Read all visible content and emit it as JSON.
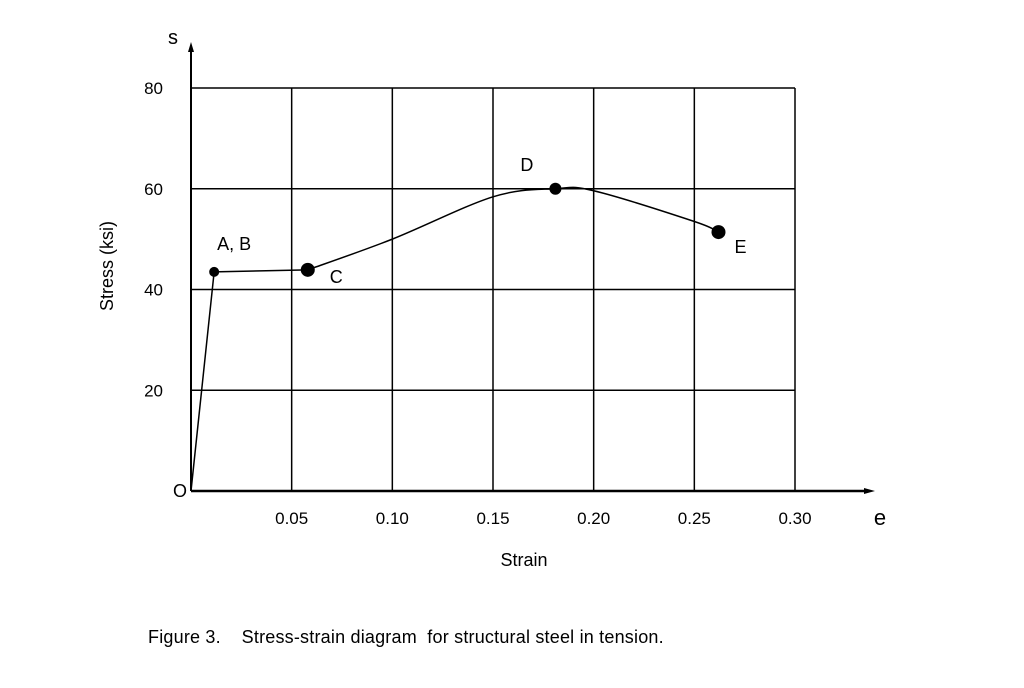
{
  "chart_data": {
    "type": "line",
    "title": "",
    "xlabel": "Strain",
    "ylabel": "Stress (ksi)",
    "x_axis_symbol": "e",
    "y_axis_symbol": "s",
    "origin_label": "O",
    "xlim": [
      0,
      0.3
    ],
    "ylim": [
      0,
      80
    ],
    "x_ticks": [
      "0.05",
      "0.10",
      "0.15",
      "0.20",
      "0.25",
      "0.30"
    ],
    "x_tick_values": [
      0.05,
      0.1,
      0.15,
      0.2,
      0.25,
      0.3
    ],
    "y_ticks": [
      "20",
      "40",
      "60",
      "80"
    ],
    "y_tick_values": [
      20,
      40,
      60,
      80
    ],
    "grid": true,
    "legend": null,
    "series": [
      {
        "name": "Structural steel in tension",
        "x": [
          0,
          0.0115,
          0.058,
          0.1,
          0.15,
          0.181,
          0.2,
          0.25,
          0.262
        ],
        "y": [
          0,
          43.5,
          43.9,
          50.0,
          58.4,
          60.0,
          59.6,
          53.5,
          51.4
        ]
      }
    ],
    "annotations": [
      {
        "label": "O",
        "x": 0,
        "y": 0
      },
      {
        "label": "A, B",
        "x": 0.0115,
        "y": 43.5
      },
      {
        "label": "C",
        "x": 0.058,
        "y": 43.9
      },
      {
        "label": "D",
        "x": 0.181,
        "y": 60.0
      },
      {
        "label": "E",
        "x": 0.262,
        "y": 51.4
      }
    ]
  },
  "caption": {
    "figure_number": "Figure 3.",
    "text": "Stress-strain diagram  for structural steel in tension."
  }
}
